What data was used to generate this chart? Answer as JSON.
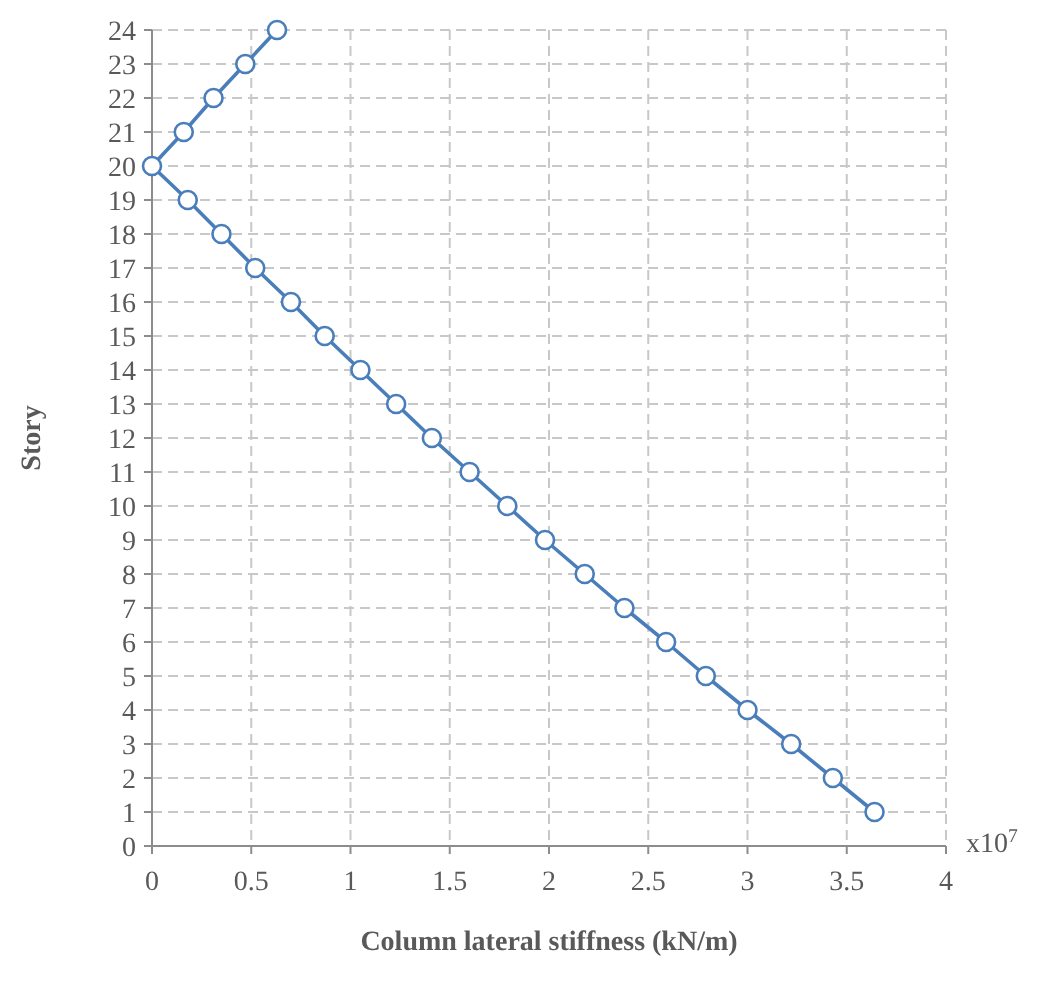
{
  "chart_data": {
    "type": "line",
    "xlabel": "Column lateral stiffness (kN/m)",
    "ylabel": "Story",
    "annotations": [
      "x10$^{7}$"
    ],
    "x": [
      3.64,
      3.43,
      3.22,
      3.0,
      2.79,
      2.59,
      2.38,
      2.18,
      1.98,
      1.79,
      1.6,
      1.41,
      1.23,
      1.05,
      0.87,
      0.7,
      0.52,
      0.35,
      0.18,
      0,
      0.16,
      0.31,
      0.47,
      0.63
    ],
    "series": [
      {
        "color": "#4a7ebb",
        "values": [
          1,
          2,
          3,
          4,
          5,
          6,
          7,
          8,
          9,
          10,
          11,
          12,
          13,
          14,
          15,
          16,
          17,
          18,
          19,
          20,
          21,
          22,
          23,
          24
        ]
      }
    ],
    "xlim": [
      0,
      4
    ],
    "xticks": [
      0,
      0.5,
      1,
      1.5,
      2,
      2.5,
      3,
      3.5,
      4
    ],
    "ylim": [
      0,
      24
    ],
    "yticks": [
      0,
      1,
      2,
      3,
      4,
      5,
      6,
      7,
      8,
      9,
      10,
      11,
      12,
      13,
      14,
      15,
      16,
      17,
      18,
      19,
      20,
      21,
      22,
      23,
      24
    ],
    "grid": true,
    "marker": "circle",
    "line_style": "solid"
  }
}
